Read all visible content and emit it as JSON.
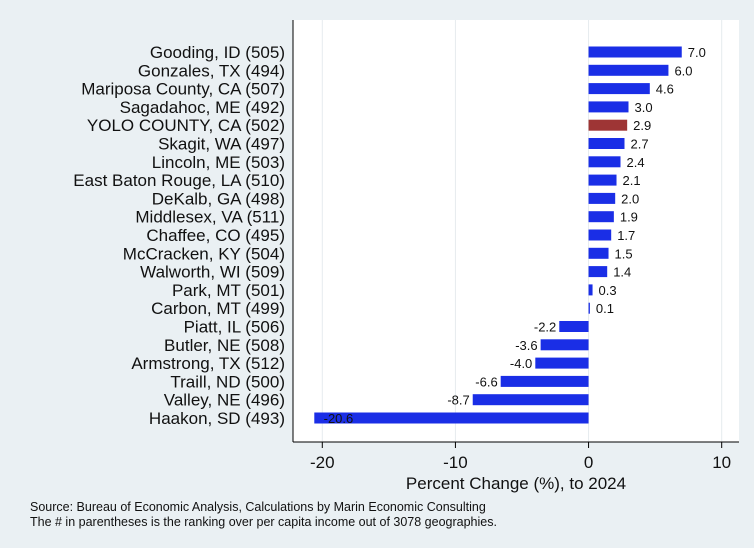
{
  "chart_data": {
    "type": "bar",
    "orientation": "horizontal",
    "categories": [
      "Gooding, ID (505)",
      "Gonzales, TX (494)",
      "Mariposa County, CA (507)",
      "Sagadahoc, ME (492)",
      "YOLO COUNTY, CA (502)",
      "Skagit, WA (497)",
      "Lincoln, ME (503)",
      "East Baton Rouge, LA (510)",
      "DeKalb, GA (498)",
      "Middlesex, VA (511)",
      "Chaffee, CO (495)",
      "McCracken, KY (504)",
      "Walworth, WI (509)",
      "Park, MT (501)",
      "Carbon, MT (499)",
      "Piatt, IL (506)",
      "Butler, NE (508)",
      "Armstrong, TX (512)",
      "Traill, ND (500)",
      "Valley, NE (496)",
      "Haakon, SD (493)"
    ],
    "values": [
      7.0,
      6.0,
      4.6,
      3.0,
      2.9,
      2.7,
      2.4,
      2.1,
      2.0,
      1.9,
      1.7,
      1.5,
      1.4,
      0.3,
      0.1,
      -2.2,
      -3.6,
      -4.0,
      -6.6,
      -8.7,
      -20.6
    ],
    "value_labels": [
      "7.0",
      "6.0",
      "4.6",
      "3.0",
      "2.9",
      "2.7",
      "2.4",
      "2.1",
      "2.0",
      "1.9",
      "1.7",
      "1.5",
      "1.4",
      "0.3",
      "0.1",
      "-2.2",
      "-3.6",
      "-4.0",
      "-6.6",
      "-8.7",
      "-20.6"
    ],
    "highlight_index": 4,
    "colors": {
      "default": "#1a2ee6",
      "highlight": "#9e3535",
      "grid": "#ffffff",
      "plot_bg": "#ffffff",
      "page_bg": "#eaf0f3"
    },
    "xlabel": "Percent Change (%), to 2024",
    "xticks": [
      -20,
      -10,
      0,
      10
    ],
    "xtick_labels": [
      "-20",
      "-10",
      "0",
      "10"
    ],
    "xlim": [
      -22.2,
      11.3
    ],
    "grid": "vertical",
    "notes": [
      "Source: Bureau of Economic Analysis, Calculations by Marin Economic Consulting",
      "The # in parentheses is the ranking over per capita income out of 3078 geographies."
    ]
  }
}
